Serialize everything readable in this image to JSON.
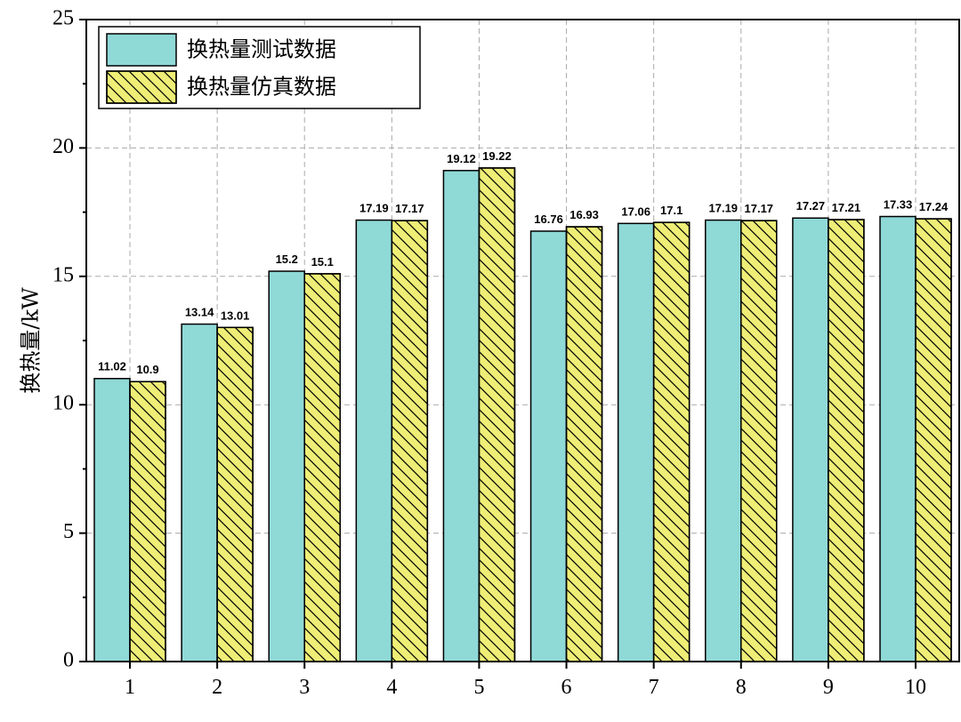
{
  "chart_data": {
    "type": "bar",
    "y_label": "换热量/kW",
    "categories": [
      "1",
      "2",
      "3",
      "4",
      "5",
      "6",
      "7",
      "8",
      "9",
      "10"
    ],
    "series": [
      {
        "name": "换热量测试数据",
        "color": "#8fd9d7",
        "values": [
          11.02,
          13.14,
          15.2,
          17.19,
          19.12,
          16.76,
          17.06,
          17.19,
          17.27,
          17.33
        ]
      },
      {
        "name": "换热量仿真数据",
        "color": "#eeee77",
        "hatch": true,
        "values": [
          10.9,
          13.01,
          15.1,
          17.17,
          19.22,
          16.93,
          17.1,
          17.17,
          17.21,
          17.24
        ]
      }
    ],
    "ylim": [
      0,
      25
    ],
    "yticks": [
      0,
      5,
      10,
      15,
      20,
      25
    ],
    "grid": true
  }
}
